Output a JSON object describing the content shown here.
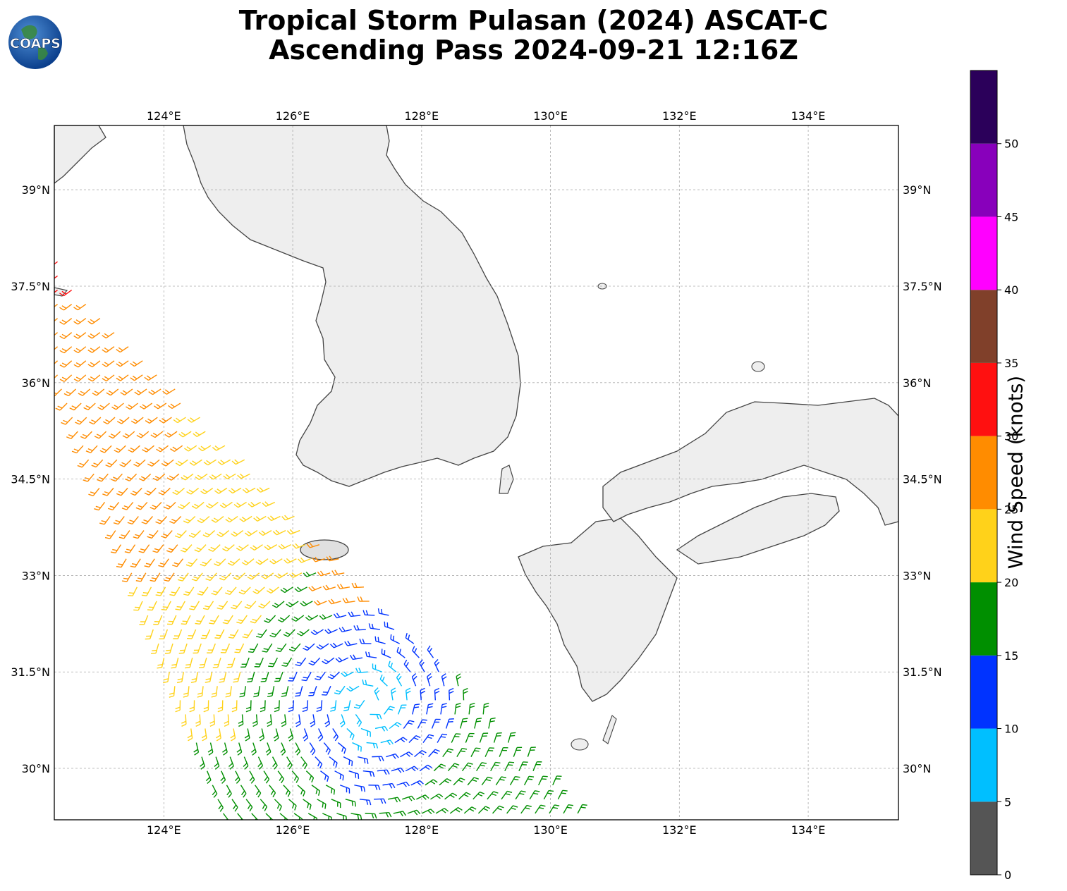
{
  "title_line1": "Tropical Storm Pulasan (2024) ASCAT-C",
  "title_line2": "Ascending Pass 2024-09-21 12:16Z",
  "logo_text": "COAPS",
  "map": {
    "lon_range": [
      122.3,
      135.4
    ],
    "lat_range": [
      29.2,
      40.0
    ],
    "lon_ticks": [
      "124°E",
      "126°E",
      "128°E",
      "130°E",
      "132°E",
      "134°E"
    ],
    "lon_tick_values": [
      124,
      126,
      128,
      130,
      132,
      134
    ],
    "lat_ticks": [
      "30°N",
      "31.5°N",
      "33°N",
      "34.5°N",
      "36°N",
      "37.5°N",
      "39°N"
    ],
    "lat_tick_values": [
      30,
      31.5,
      33,
      34.5,
      36,
      37.5,
      39
    ],
    "grid": true,
    "gridline_style": "dashed gray",
    "land_color": "#f0f0f0",
    "coast_color": "#444444"
  },
  "colorbar": {
    "label": "Wind Speed (knots)",
    "ticks": [
      "0",
      "5",
      "10",
      "15",
      "20",
      "25",
      "30",
      "35",
      "40",
      "45",
      "50"
    ],
    "bins": [
      {
        "from": 0,
        "to": 5,
        "color": "#555555"
      },
      {
        "from": 5,
        "to": 10,
        "color": "#00bfff"
      },
      {
        "from": 10,
        "to": 15,
        "color": "#0033ff"
      },
      {
        "from": 15,
        "to": 20,
        "color": "#008f00"
      },
      {
        "from": 20,
        "to": 25,
        "color": "#ffd21a"
      },
      {
        "from": 25,
        "to": 30,
        "color": "#ff8c00"
      },
      {
        "from": 30,
        "to": 35,
        "color": "#ff1010"
      },
      {
        "from": 35,
        "to": 40,
        "color": "#80402a"
      },
      {
        "from": 40,
        "to": 45,
        "color": "#ff00ff"
      },
      {
        "from": 45,
        "to": 50,
        "color": "#8800bb"
      },
      {
        "from": 50,
        "to": 55,
        "color": "#2b005a"
      }
    ]
  }
}
